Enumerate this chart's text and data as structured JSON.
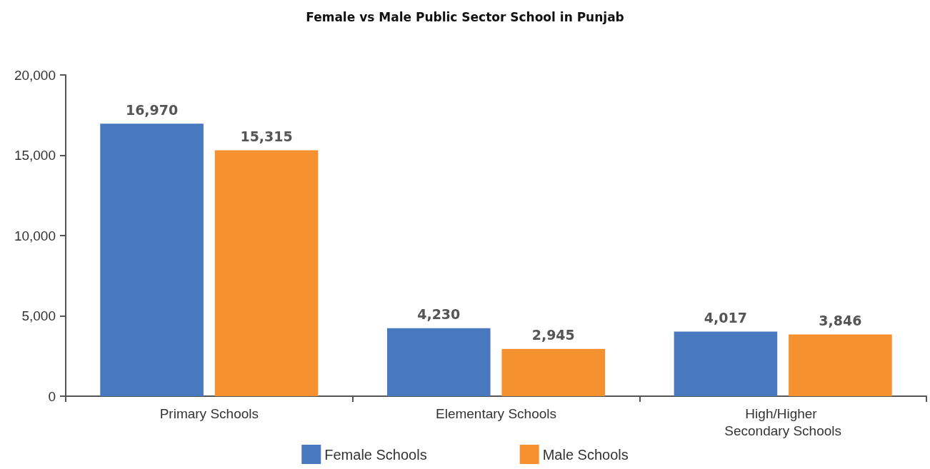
{
  "chart_data": {
    "type": "bar",
    "title": "Female vs Male Public Sector School in Punjab",
    "categories": [
      "Primary Schools",
      "Elementary Schools",
      "High/Higher Secondary Schools"
    ],
    "series": [
      {
        "name": "Female Schools",
        "color": "#4878be",
        "values": [
          16970,
          4230,
          4017
        ],
        "value_labels": [
          "16,970",
          "4,230",
          "4,017"
        ]
      },
      {
        "name": "Male Schools",
        "color": "#f5922f",
        "values": [
          15315,
          2945,
          3846
        ],
        "value_labels": [
          "15,315",
          "2,945",
          "3,846"
        ]
      }
    ],
    "ylim": [
      0,
      20000
    ],
    "yticks": [
      {
        "value": 0,
        "label": "0"
      },
      {
        "value": 5000,
        "label": "5,000"
      },
      {
        "value": 10000,
        "label": "10,000"
      },
      {
        "value": 15000,
        "label": "15,000"
      },
      {
        "value": 20000,
        "label": "20,000"
      }
    ],
    "grid": false,
    "legend": "bottom"
  }
}
